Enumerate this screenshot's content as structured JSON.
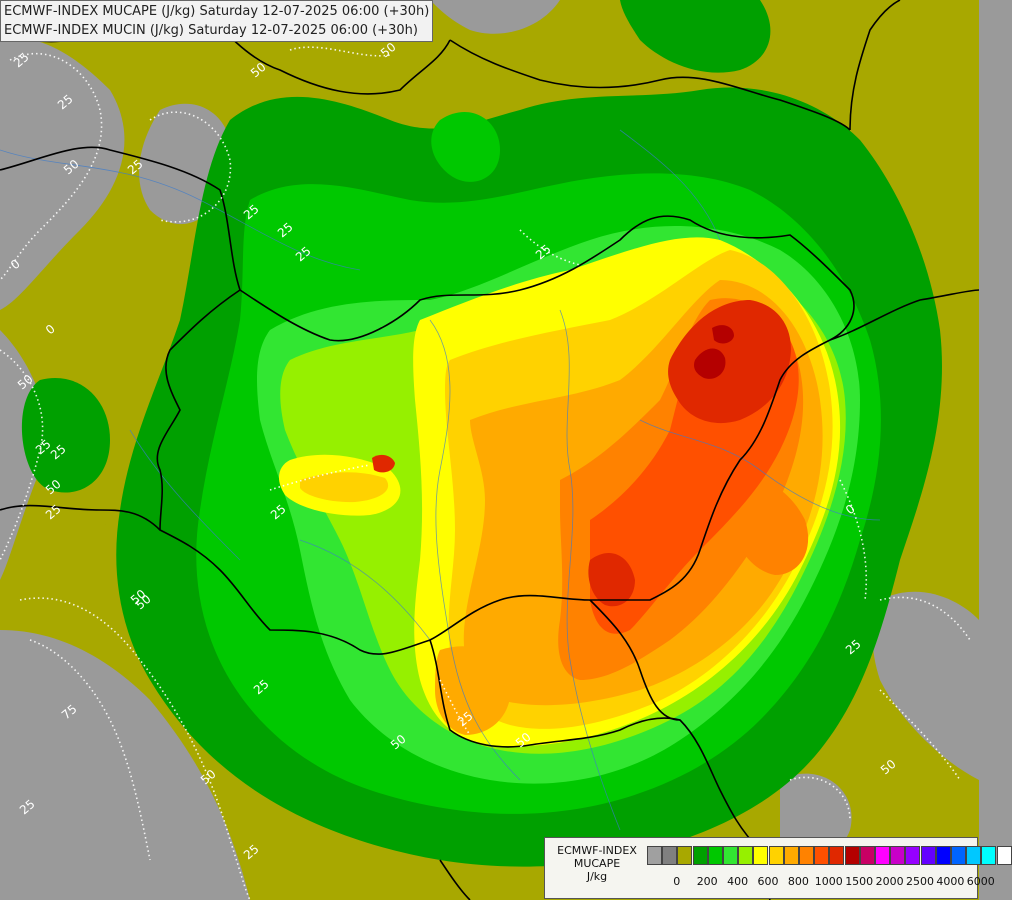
{
  "titles": {
    "line1": "ECMWF-INDEX MUCAPE (J/kg) Saturday 12-07-2025 06:00 (+30h)",
    "line2": "ECMWF-INDEX MUCIN (J/kg) Saturday 12-07-2025 06:00 (+30h)"
  },
  "legend": {
    "title1": "ECMWF-INDEX",
    "title2": "MUCAPE",
    "unit": "J/kg",
    "colors": [
      "#a0a0a0",
      "#808080",
      "#a8a800",
      "#00a000",
      "#00c800",
      "#32e632",
      "#96f000",
      "#ffff00",
      "#ffd200",
      "#ffaa00",
      "#ff8200",
      "#ff5000",
      "#e02800",
      "#b40000",
      "#c80064",
      "#ff00ff",
      "#c800c8",
      "#9600ff",
      "#6400ff",
      "#0000ff",
      "#0064ff",
      "#00c8ff",
      "#00ffff",
      "#ffffff"
    ],
    "ticks": [
      {
        "label": "0",
        "i": 1
      },
      {
        "label": "200",
        "i": 3
      },
      {
        "label": "400",
        "i": 5
      },
      {
        "label": "600",
        "i": 7
      },
      {
        "label": "800",
        "i": 9
      },
      {
        "label": "1000",
        "i": 11
      },
      {
        "label": "1500",
        "i": 13
      },
      {
        "label": "2000",
        "i": 15
      },
      {
        "label": "2500",
        "i": 17
      },
      {
        "label": "4000",
        "i": 19
      },
      {
        "label": "6000",
        "i": 21
      }
    ]
  },
  "contour_labels": [
    "25",
    "50",
    "50",
    "25",
    "50",
    "25",
    "25",
    "25",
    "25",
    "50",
    "25",
    "25",
    "25",
    "50",
    "0",
    "0",
    "25",
    "25",
    "50",
    "25",
    "75",
    "50",
    "25",
    "0",
    "50",
    "25",
    "50",
    "25",
    "25",
    "50",
    "50"
  ]
}
